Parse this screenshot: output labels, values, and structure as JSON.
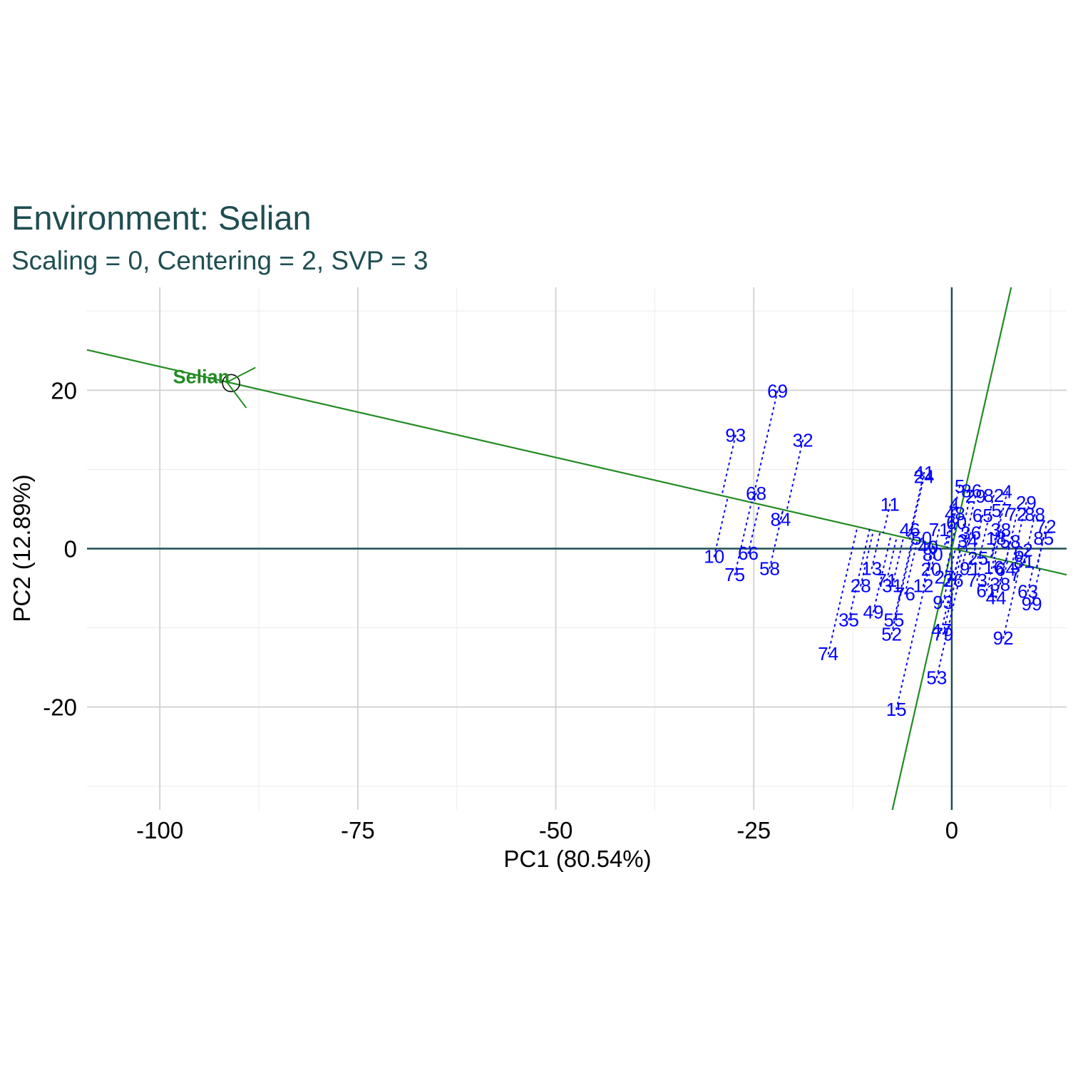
{
  "chart_data": {
    "type": "scatter",
    "title": "Environment: Selian",
    "subtitle": "Scaling = 0, Centering = 2, SVP = 3",
    "xlabel": "PC1 (80.54%)",
    "ylabel": "PC2 (12.89%)",
    "xlim": [
      -109.2,
      14.5
    ],
    "ylim": [
      -33,
      33
    ],
    "x_ticks": [
      -100,
      -75,
      -50,
      -25,
      0
    ],
    "y_ticks": [
      -20,
      0,
      20
    ],
    "x_tick_labels": [
      "-100",
      "-75",
      "-50",
      "-25",
      "0"
    ],
    "y_tick_labels": [
      "-20",
      "0",
      "20"
    ],
    "grid": true,
    "colors": {
      "title": "#1f4e52",
      "point_labels": "#0000ff",
      "environment": "#228b22",
      "axes_zero": "#1f4e52",
      "grid_major": "#d4d4d4",
      "grid_minor": "#ececec"
    },
    "environment": {
      "label": "Selian",
      "x": -91.0,
      "y": 20.9,
      "axis_line": [
        [
          -109.2,
          25.1
        ],
        [
          14.5,
          -3.3
        ]
      ],
      "perpendicular_line": [
        [
          -7.5,
          -33
        ],
        [
          7.5,
          33
        ]
      ]
    },
    "genotypes": [
      {
        "label": "69",
        "x": -22.0,
        "y": 19.9
      },
      {
        "label": "93",
        "x": -27.3,
        "y": 14.3
      },
      {
        "label": "32",
        "x": -18.8,
        "y": 13.7
      },
      {
        "label": "68",
        "x": -24.7,
        "y": 7.0
      },
      {
        "label": "84",
        "x": -21.6,
        "y": 3.7
      },
      {
        "label": "10",
        "x": -30.0,
        "y": -1.0
      },
      {
        "label": "66",
        "x": -25.7,
        "y": -0.6
      },
      {
        "label": "58",
        "x": -23.0,
        "y": -2.5
      },
      {
        "label": "75",
        "x": -27.4,
        "y": -3.3
      },
      {
        "label": "11",
        "x": -7.8,
        "y": 5.6
      },
      {
        "label": "41",
        "x": -3.5,
        "y": 9.6
      },
      {
        "label": "24",
        "x": -3.5,
        "y": 9.1
      },
      {
        "label": "46",
        "x": -5.3,
        "y": 2.4
      },
      {
        "label": "71",
        "x": -1.6,
        "y": 2.4
      },
      {
        "label": "13",
        "x": -10.1,
        "y": -2.5
      },
      {
        "label": "28",
        "x": -11.5,
        "y": -4.7
      },
      {
        "label": "31",
        "x": -7.5,
        "y": -4.7
      },
      {
        "label": "71",
        "x": -8.2,
        "y": -4.0
      },
      {
        "label": "76",
        "x": -5.9,
        "y": -5.7
      },
      {
        "label": "12",
        "x": -3.6,
        "y": -4.7
      },
      {
        "label": "49",
        "x": -9.9,
        "y": -8.0
      },
      {
        "label": "55",
        "x": -7.3,
        "y": -9.0
      },
      {
        "label": "35",
        "x": -13.0,
        "y": -9.0
      },
      {
        "label": "52",
        "x": -7.6,
        "y": -10.8
      },
      {
        "label": "74",
        "x": -15.6,
        "y": -13.3
      },
      {
        "label": "47",
        "x": -1.3,
        "y": -10.3
      },
      {
        "label": "79",
        "x": -1.1,
        "y": -10.8
      },
      {
        "label": "93",
        "x": -1.1,
        "y": -6.8
      },
      {
        "label": "53",
        "x": -1.9,
        "y": -16.3
      },
      {
        "label": "15",
        "x": -7.0,
        "y": -20.3
      },
      {
        "label": "50",
        "x": -3.8,
        "y": 1.3
      },
      {
        "label": "40",
        "x": -3.0,
        "y": 0.2
      },
      {
        "label": "80",
        "x": -2.4,
        "y": -0.7
      },
      {
        "label": "20",
        "x": -2.6,
        "y": -2.6
      },
      {
        "label": "27",
        "x": -0.9,
        "y": -3.6
      },
      {
        "label": "26",
        "x": 0.2,
        "y": -4.0
      },
      {
        "label": "5",
        "x": 1.0,
        "y": 7.9
      },
      {
        "label": "86",
        "x": 2.5,
        "y": 7.3
      },
      {
        "label": "29",
        "x": 3.0,
        "y": 6.6
      },
      {
        "label": "82",
        "x": 5.3,
        "y": 6.7
      },
      {
        "label": "4",
        "x": 7.0,
        "y": 7.2
      },
      {
        "label": "29",
        "x": 9.4,
        "y": 5.8
      },
      {
        "label": "4",
        "x": 0.3,
        "y": 5.6
      },
      {
        "label": "48",
        "x": 0.4,
        "y": 4.4
      },
      {
        "label": "60",
        "x": 0.6,
        "y": 3.3
      },
      {
        "label": "65",
        "x": 3.9,
        "y": 4.2
      },
      {
        "label": "57",
        "x": 6.3,
        "y": 4.8
      },
      {
        "label": "72",
        "x": 8.2,
        "y": 4.3
      },
      {
        "label": "88",
        "x": 10.5,
        "y": 4.3
      },
      {
        "label": "72",
        "x": 11.9,
        "y": 2.8
      },
      {
        "label": "85",
        "x": 11.6,
        "y": 1.3
      },
      {
        "label": "36",
        "x": 2.4,
        "y": 2.0
      },
      {
        "label": "34",
        "x": 2.0,
        "y": 1.0
      },
      {
        "label": "38",
        "x": 6.2,
        "y": 2.4
      },
      {
        "label": "18",
        "x": 5.6,
        "y": 1.3
      },
      {
        "label": "58",
        "x": 7.4,
        "y": 0.9
      },
      {
        "label": "2",
        "x": 9.6,
        "y": -0.2
      },
      {
        "label": "6",
        "x": 8.5,
        "y": -0.5
      },
      {
        "label": "81",
        "x": 9.1,
        "y": -1.6
      },
      {
        "label": "25",
        "x": 3.3,
        "y": -1.2
      },
      {
        "label": "91",
        "x": 2.3,
        "y": -2.5
      },
      {
        "label": "16",
        "x": 5.3,
        "y": -2.4
      },
      {
        "label": "64",
        "x": 6.8,
        "y": -2.6
      },
      {
        "label": "7",
        "x": 8.0,
        "y": -3.3
      },
      {
        "label": "73",
        "x": 3.2,
        "y": -4.0
      },
      {
        "label": "38",
        "x": 6.1,
        "y": -4.5
      },
      {
        "label": "61",
        "x": 4.4,
        "y": -5.3
      },
      {
        "label": "44",
        "x": 5.6,
        "y": -6.2
      },
      {
        "label": "63",
        "x": 9.6,
        "y": -5.4
      },
      {
        "label": "99",
        "x": 10.1,
        "y": -7.0
      },
      {
        "label": "92",
        "x": 6.5,
        "y": -11.3
      }
    ]
  }
}
